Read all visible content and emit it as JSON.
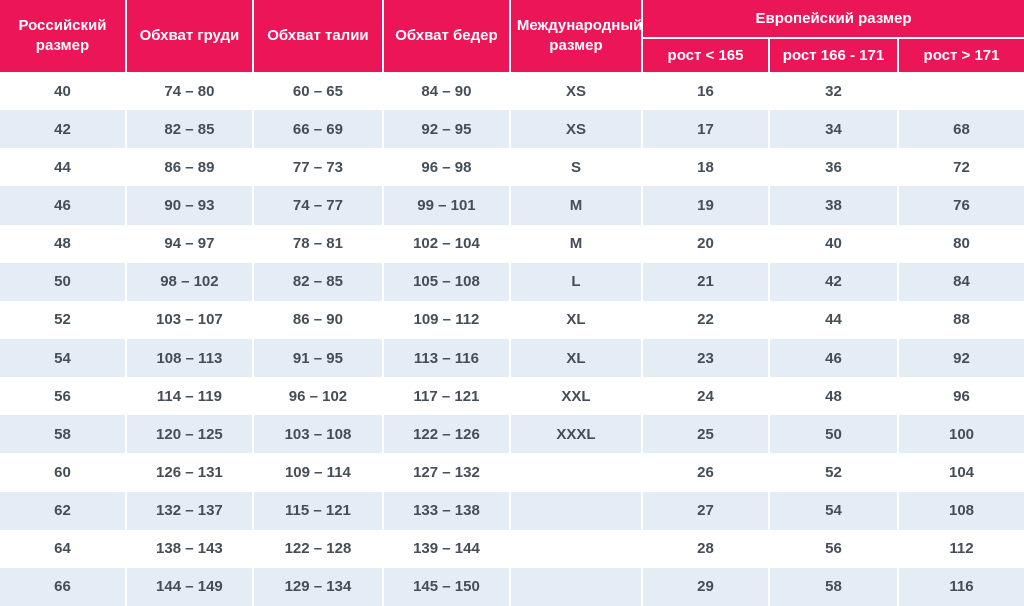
{
  "table": {
    "header": {
      "russian_size": "Российский размер",
      "chest": "Обхват груди",
      "waist": "Обхват талии",
      "hips": "Обхват бедер",
      "international_size": "Международный размер",
      "european_group": "Европейский размер",
      "height_lt_165": "рост < 165",
      "height_166_171": "рост 166 - 171",
      "height_gt_171": "рост > 171"
    },
    "rows": [
      [
        "40",
        "74 – 80",
        "60 – 65",
        "84 – 90",
        "XS",
        "16",
        "32",
        ""
      ],
      [
        "42",
        "82 – 85",
        "66 – 69",
        "92 – 95",
        "XS",
        "17",
        "34",
        "68"
      ],
      [
        "44",
        "86 – 89",
        "77 – 73",
        "96 – 98",
        "S",
        "18",
        "36",
        "72"
      ],
      [
        "46",
        "90 – 93",
        "74 – 77",
        "99 – 101",
        "M",
        "19",
        "38",
        "76"
      ],
      [
        "48",
        "94 – 97",
        "78 – 81",
        "102 – 104",
        "M",
        "20",
        "40",
        "80"
      ],
      [
        "50",
        "98 – 102",
        "82 – 85",
        "105 – 108",
        "L",
        "21",
        "42",
        "84"
      ],
      [
        "52",
        "103 – 107",
        "86 – 90",
        "109 – 112",
        "XL",
        "22",
        "44",
        "88"
      ],
      [
        "54",
        "108 – 113",
        "91 – 95",
        "113 – 116",
        "XL",
        "23",
        "46",
        "92"
      ],
      [
        "56",
        "114 – 119",
        "96 – 102",
        "117 – 121",
        "XXL",
        "24",
        "48",
        "96"
      ],
      [
        "58",
        "120 – 125",
        "103 – 108",
        "122 – 126",
        "XXXL",
        "25",
        "50",
        "100"
      ],
      [
        "60",
        "126 – 131",
        "109 – 114",
        "127 – 132",
        "",
        "26",
        "52",
        "104"
      ],
      [
        "62",
        "132 – 137",
        "115 – 121",
        "133 – 138",
        "",
        "27",
        "54",
        "108"
      ],
      [
        "64",
        "138 – 143",
        "122 – 128",
        "139 – 144",
        "",
        "28",
        "56",
        "112"
      ],
      [
        "66",
        "144 – 149",
        "129 – 134",
        "145 – 150",
        "",
        "29",
        "58",
        "116"
      ]
    ]
  },
  "colors": {
    "header_bg": "#EC1557",
    "header_text": "#FFFFFF",
    "row_alt_bg": "#E4ECF6",
    "row_bg": "#FFFFFF",
    "body_text": "#454E57"
  }
}
